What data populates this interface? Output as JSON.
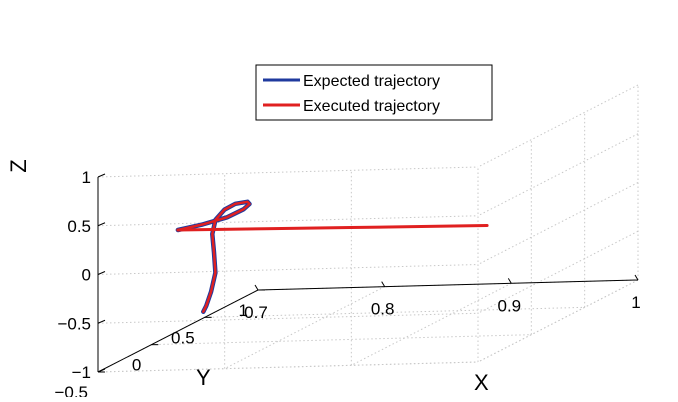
{
  "chart_data": {
    "type": "line",
    "projection": "3d",
    "xlabel": "X",
    "ylabel": "Y",
    "zlabel": "Z",
    "xlim": [
      0.7,
      1.0
    ],
    "ylim": [
      -0.5,
      1.0
    ],
    "zlim": [
      -1.0,
      1.0
    ],
    "xticks": [
      "0.7",
      "0.8",
      "0.9",
      "1"
    ],
    "yticks": [
      "−0.5",
      "0",
      "0.5",
      "1"
    ],
    "zticks": [
      "−1",
      "−0.5",
      "0",
      "0.5",
      "1"
    ],
    "grid": true,
    "legend_position": "top-right",
    "series": [
      {
        "name": "Expected trajectory",
        "color": "#1f3a9e",
        "points": [
          [
            0.71,
            0.13,
            0.1
          ],
          [
            0.728,
            0.15,
            0.14
          ],
          [
            0.743,
            0.2,
            0.18
          ],
          [
            0.75,
            0.27,
            0.22
          ],
          [
            0.748,
            0.35,
            0.23
          ],
          [
            0.738,
            0.45,
            0.2
          ],
          [
            0.72,
            0.55,
            0.13
          ],
          [
            0.703,
            0.65,
            0.02
          ],
          [
            0.69,
            0.72,
            -0.12
          ],
          [
            0.685,
            0.75,
            -0.28
          ],
          [
            0.688,
            0.73,
            -0.46
          ],
          [
            0.695,
            0.66,
            -0.63
          ],
          [
            0.7,
            0.56,
            -0.77
          ],
          [
            0.703,
            0.48,
            -0.87
          ],
          [
            0.704,
            0.44,
            -0.91
          ]
        ]
      },
      {
        "name": "Executed trajectory",
        "color": "#e02020",
        "points": [
          [
            0.71,
            0.13,
            0.1
          ],
          [
            0.728,
            0.15,
            0.14
          ],
          [
            0.743,
            0.2,
            0.18
          ],
          [
            0.75,
            0.27,
            0.22
          ],
          [
            0.748,
            0.35,
            0.23
          ],
          [
            0.738,
            0.45,
            0.2
          ],
          [
            0.72,
            0.55,
            0.13
          ],
          [
            0.703,
            0.65,
            0.02
          ],
          [
            0.69,
            0.72,
            -0.12
          ],
          [
            0.685,
            0.75,
            -0.28
          ],
          [
            0.688,
            0.73,
            -0.46
          ],
          [
            0.695,
            0.66,
            -0.63
          ],
          [
            0.7,
            0.56,
            -0.77
          ],
          [
            0.703,
            0.48,
            -0.87
          ],
          [
            0.704,
            0.44,
            -0.91
          ]
        ],
        "extension": [
          [
            0.71,
            0.13,
            0.1
          ],
          [
            0.78,
            0.11,
            0.1
          ],
          [
            0.85,
            0.09,
            0.1
          ],
          [
            0.92,
            0.07,
            0.1
          ],
          [
            0.96,
            0.06,
            0.1
          ]
        ]
      }
    ]
  }
}
